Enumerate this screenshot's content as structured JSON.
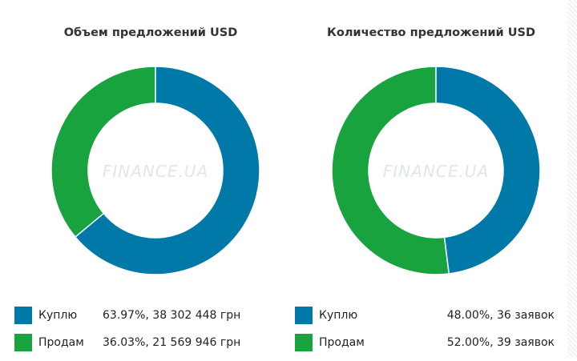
{
  "chart_data": [
    {
      "type": "pie",
      "title": "Объем предложений USD",
      "categories": [
        "Куплю",
        "Продам"
      ],
      "values": [
        63.97,
        36.03
      ],
      "value_labels": [
        "63.97%, 38 302 448 грн",
        "36.03%, 21 569 946 грн"
      ],
      "colors": [
        "#0079a8",
        "#18a33e"
      ],
      "watermark": "FINANCE.UA",
      "legend": "bottom"
    },
    {
      "type": "pie",
      "title": "Количество предложений USD",
      "categories": [
        "Куплю",
        "Продам"
      ],
      "values": [
        48.0,
        52.0
      ],
      "value_labels": [
        "48.00%, 36 заявок",
        "52.00%, 39 заявок"
      ],
      "colors": [
        "#0079a8",
        "#18a33e"
      ],
      "watermark": "FINANCE.UA",
      "legend": "bottom"
    }
  ]
}
